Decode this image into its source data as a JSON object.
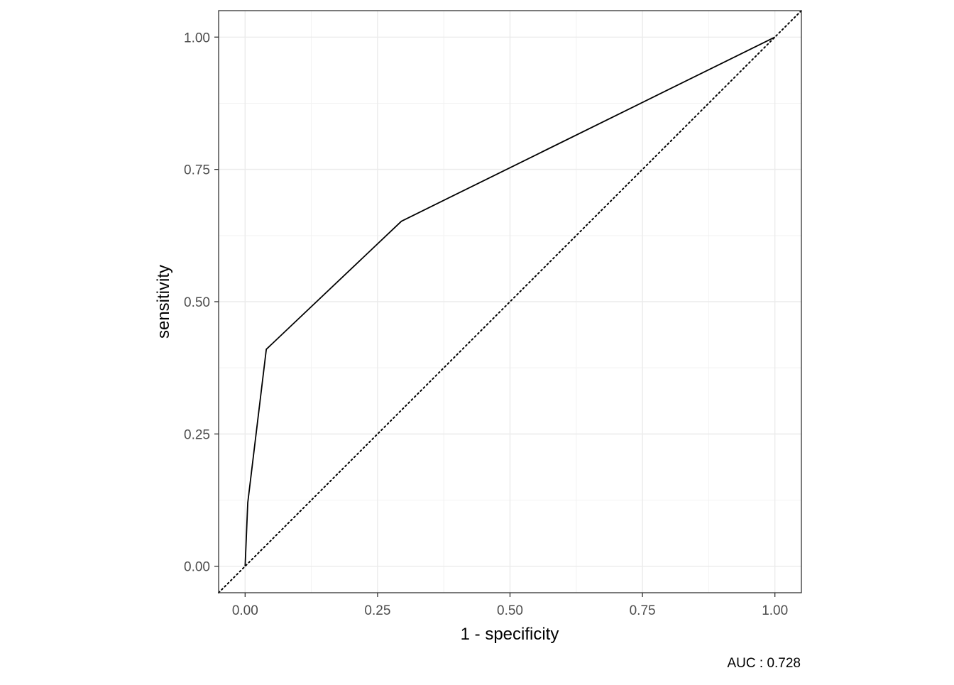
{
  "chart_data": {
    "type": "line",
    "title": "",
    "xlabel": "1 - specificity",
    "ylabel": "sensitivity",
    "caption": "AUC : 0.728",
    "xlim": [
      -0.05,
      1.05
    ],
    "ylim": [
      -0.05,
      1.05
    ],
    "x_ticks": [
      {
        "value": 0,
        "label": "0.00"
      },
      {
        "value": 0.25,
        "label": "0.25"
      },
      {
        "value": 0.5,
        "label": "0.50"
      },
      {
        "value": 0.75,
        "label": "0.75"
      },
      {
        "value": 1,
        "label": "1.00"
      }
    ],
    "y_ticks": [
      {
        "value": 0,
        "label": "0.00"
      },
      {
        "value": 0.25,
        "label": "0.25"
      },
      {
        "value": 0.5,
        "label": "0.50"
      },
      {
        "value": 0.75,
        "label": "0.75"
      },
      {
        "value": 1,
        "label": "1.00"
      }
    ],
    "grid": true,
    "legend": "none",
    "series": [
      {
        "style": "solid",
        "color": "#000000",
        "points": [
          {
            "x": 0.0,
            "y": 0.0
          },
          {
            "x": 0.005,
            "y": 0.12
          },
          {
            "x": 0.04,
            "y": 0.41
          },
          {
            "x": 0.295,
            "y": 0.652
          },
          {
            "x": 1.0,
            "y": 1.0
          }
        ]
      },
      {
        "style": "dotted",
        "color": "#000000",
        "points": [
          {
            "x": -0.05,
            "y": -0.05
          },
          {
            "x": 1.05,
            "y": 1.05
          }
        ]
      }
    ]
  }
}
